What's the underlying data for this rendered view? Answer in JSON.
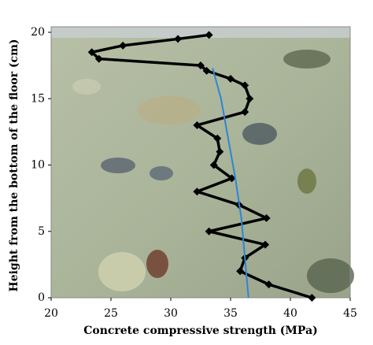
{
  "chart_data": {
    "type": "line",
    "x_label": "Concrete compressive strength (MPa)",
    "y_label": "Height from the bottom of the floor (cm)",
    "xlim": [
      20,
      45
    ],
    "xticks": [
      20,
      25,
      30,
      35,
      40,
      45
    ],
    "ylim": [
      0,
      20
    ],
    "yticks": [
      0,
      5,
      10,
      15,
      20
    ],
    "series": [
      {
        "color": "#000000",
        "marker": "diamond",
        "x": [
          41.8,
          38.2,
          35.8,
          36.2,
          37.9,
          33.2,
          38.0,
          35.7,
          32.2,
          35.1,
          33.6,
          34.1,
          33.9,
          32.2,
          36.2,
          36.6,
          36.2,
          35.0,
          33.0,
          32.5,
          24.0,
          23.4,
          26.0,
          30.6,
          33.2
        ],
        "values": [
          0,
          1,
          2,
          3,
          4,
          5,
          6,
          7,
          8,
          9,
          10,
          11,
          12,
          13,
          14,
          15,
          16,
          16.5,
          17.1,
          17.5,
          18,
          18.5,
          19,
          19.5,
          19.8
        ]
      },
      {
        "color": "#2b86d6",
        "marker": "none",
        "x": [
          36.5,
          36.2,
          35.9,
          35.4,
          34.8,
          34.2,
          33.5
        ],
        "values": [
          0,
          3,
          6,
          9,
          12,
          15,
          17.3
        ]
      }
    ]
  }
}
